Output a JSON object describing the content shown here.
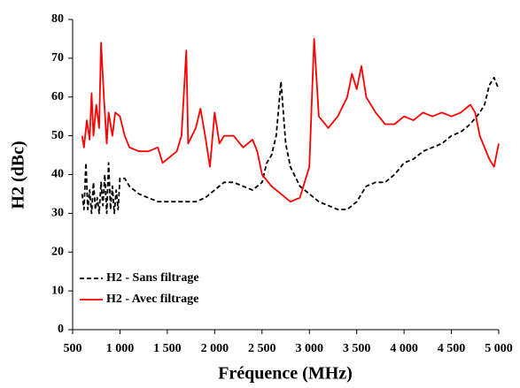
{
  "chart_data": {
    "type": "line",
    "x_label": "Fréquence (MHz)",
    "y_label": "H2 (dBc)",
    "xlim": [
      500,
      5000
    ],
    "ylim": [
      0,
      80
    ],
    "xticks": [
      500,
      {
        "value": 1000,
        "label": "1 000"
      },
      {
        "value": 1500,
        "label": "1 500"
      },
      {
        "value": 2000,
        "label": "2 000"
      },
      {
        "value": 2500,
        "label": "2 500"
      },
      {
        "value": 3000,
        "label": "3 000"
      },
      {
        "value": 3500,
        "label": "3 500"
      },
      {
        "value": 4000,
        "label": "4 000"
      },
      {
        "value": 4500,
        "label": "4 500"
      },
      {
        "value": 5000,
        "label": "5 000"
      }
    ],
    "yticks": [
      0,
      10,
      20,
      30,
      40,
      50,
      60,
      70,
      80
    ],
    "grid": false,
    "legend": "lower left",
    "series": [
      {
        "name": "H2 - Sans filtrage",
        "color": "#000000",
        "line_style": "dashed",
        "x": [
          600,
          620,
          640,
          660,
          680,
          700,
          720,
          740,
          760,
          780,
          800,
          820,
          840,
          860,
          880,
          900,
          920,
          940,
          960,
          980,
          1000,
          1050,
          1100,
          1200,
          1300,
          1400,
          1500,
          1600,
          1800,
          1900,
          2000,
          2100,
          2200,
          2300,
          2400,
          2500,
          2550,
          2600,
          2650,
          2700,
          2750,
          2800,
          2900,
          3000,
          3100,
          3200,
          3300,
          3400,
          3500,
          3600,
          3700,
          3800,
          3900,
          4000,
          4100,
          4200,
          4300,
          4400,
          4500,
          4600,
          4700,
          4800,
          4850,
          4900,
          4950,
          5000
        ],
        "values": [
          35,
          31,
          43,
          31,
          36,
          30,
          38,
          31,
          34,
          30,
          38,
          32,
          40,
          30,
          43,
          31,
          37,
          30,
          36,
          31,
          39,
          39,
          37,
          35,
          34,
          33,
          33,
          33,
          33,
          34,
          36,
          38,
          38,
          37,
          36,
          38,
          43,
          45,
          50,
          64,
          48,
          42,
          37,
          35,
          33,
          32,
          31,
          31,
          33,
          37,
          38,
          38,
          40,
          43,
          44,
          46,
          47,
          48,
          50,
          51,
          53,
          56,
          58,
          63,
          65,
          62
        ]
      },
      {
        "name": "H2 - Avec filtrage",
        "color": "#ff0000",
        "line_style": "solid",
        "x": [
          600,
          620,
          650,
          680,
          700,
          720,
          750,
          780,
          800,
          830,
          860,
          880,
          920,
          950,
          1000,
          1050,
          1100,
          1200,
          1300,
          1400,
          1450,
          1500,
          1600,
          1650,
          1700,
          1720,
          1800,
          1850,
          1900,
          1950,
          2000,
          2050,
          2100,
          2200,
          2300,
          2400,
          2450,
          2500,
          2600,
          2700,
          2800,
          2900,
          3000,
          3050,
          3100,
          3200,
          3300,
          3400,
          3450,
          3500,
          3550,
          3600,
          3700,
          3800,
          3900,
          4000,
          4100,
          4200,
          4300,
          4400,
          4500,
          4600,
          4700,
          4750,
          4800,
          4900,
          4950,
          5000
        ],
        "values": [
          50,
          47,
          54,
          49,
          61,
          50,
          58,
          52,
          74,
          60,
          48,
          56,
          50,
          56,
          55,
          50,
          47,
          46,
          46,
          47,
          43,
          44,
          46,
          50,
          72,
          48,
          52,
          57,
          50,
          42,
          56,
          48,
          50,
          50,
          47,
          49,
          46,
          40,
          37,
          35,
          33,
          34,
          42,
          75,
          55,
          52,
          55,
          60,
          66,
          62,
          68,
          60,
          56,
          53,
          53,
          55,
          54,
          56,
          55,
          56,
          55,
          56,
          58,
          56,
          50,
          44,
          42,
          48
        ]
      }
    ]
  }
}
